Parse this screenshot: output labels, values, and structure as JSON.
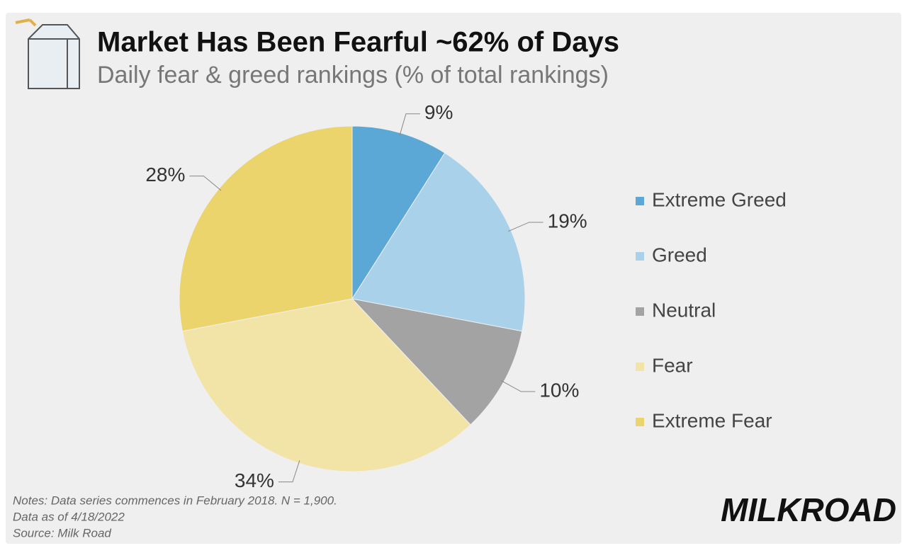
{
  "chart_data": {
    "type": "pie",
    "title": "Market Has Been Fearful ~62% of Days",
    "subtitle": "Daily fear & greed rankings (% of total rankings)",
    "categories": [
      "Extreme Greed",
      "Greed",
      "Neutral",
      "Fear",
      "Extreme Fear"
    ],
    "values": [
      9,
      19,
      10,
      34,
      28
    ],
    "value_labels": [
      "9%",
      "19%",
      "10%",
      "34%",
      "28%"
    ],
    "colors": [
      "#5ba7d6",
      "#a9d1e9",
      "#a3a3a3",
      "#f1e4a6",
      "#ecd46c"
    ],
    "legend": "right",
    "notes": [
      "Notes: Data series commences in February 2018. N = 1,900.",
      "Data as of 4/18/2022",
      "Source: Milk Road"
    ],
    "brand": "MILKROAD"
  }
}
